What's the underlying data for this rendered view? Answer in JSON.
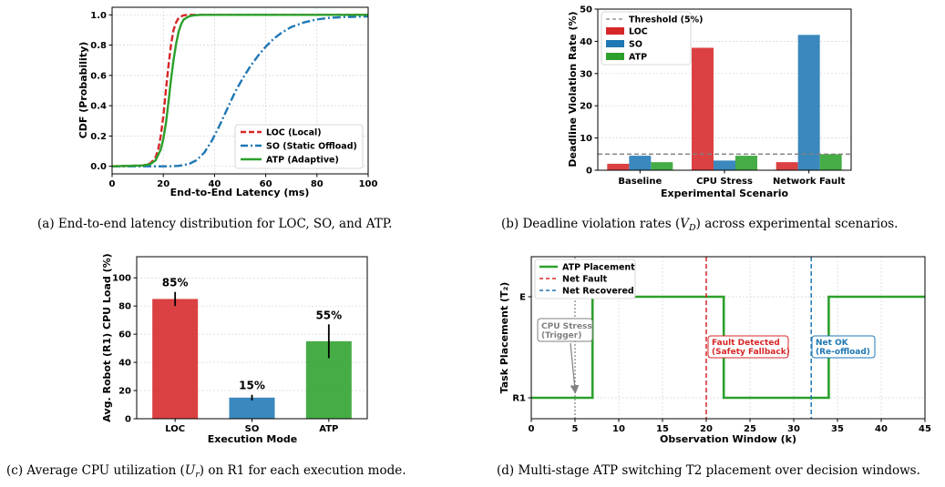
{
  "colors": {
    "loc": "#d62728",
    "so": "#1f77b4",
    "atp": "#2ca02c",
    "threshold": "#808080",
    "gray": "#808080"
  },
  "captions": {
    "a_pre": "(a) End-to-end latency distribution for LOC, SO, and ATP.",
    "b_pre": "(b) Deadline violation rates (",
    "b_sym": "V",
    "b_sub": "D",
    "b_post": ") across experimental scenarios.",
    "c_pre": "(c) Average CPU utilization (",
    "c_sym": "U",
    "c_sub": "r",
    "c_post": ") on R1 for each execution mode.",
    "d_pre": "(d) Multi-stage ATP switching T2 placement over decision windows."
  },
  "chart_data": [
    {
      "id": "a",
      "type": "line",
      "xlabel": "End-to-End Latency (ms)",
      "ylabel": "CDF (Probability)",
      "xlim": [
        0,
        100
      ],
      "ylim": [
        -0.05,
        1.05
      ],
      "xticks": [
        "0",
        "20",
        "40",
        "60",
        "80",
        "100"
      ],
      "yticks": [
        "0.0",
        "0.2",
        "0.4",
        "0.6",
        "0.8",
        "1.0"
      ],
      "grid": true,
      "legend_position": "bottom-right",
      "series": [
        {
          "name": "LOC (Local)",
          "style": "dashed",
          "color": "#d62728",
          "x": [
            0,
            12,
            15,
            17,
            18,
            19,
            20,
            21,
            22,
            23,
            24,
            25,
            26,
            27,
            28,
            30,
            100
          ],
          "y": [
            0,
            0.005,
            0.02,
            0.06,
            0.11,
            0.2,
            0.33,
            0.5,
            0.66,
            0.8,
            0.9,
            0.95,
            0.98,
            0.99,
            0.997,
            1.0,
            1.0
          ]
        },
        {
          "name": "SO (Static Offload)",
          "style": "dashdot",
          "color": "#1f77b4",
          "x": [
            0,
            22,
            26,
            30,
            33,
            36,
            39,
            42,
            45,
            48,
            51,
            54,
            57,
            60,
            63,
            66,
            70,
            75,
            80,
            85,
            90,
            100
          ],
          "y": [
            0,
            0,
            0.003,
            0.015,
            0.04,
            0.09,
            0.17,
            0.27,
            0.38,
            0.49,
            0.58,
            0.66,
            0.73,
            0.79,
            0.84,
            0.88,
            0.92,
            0.95,
            0.97,
            0.98,
            0.985,
            0.99
          ]
        },
        {
          "name": "ATP (Adaptive)",
          "style": "solid",
          "color": "#2ca02c",
          "x": [
            0,
            12,
            15,
            17,
            19,
            20,
            21,
            22,
            23,
            24,
            25,
            26,
            27,
            28,
            30,
            32,
            35,
            100
          ],
          "y": [
            0,
            0.005,
            0.015,
            0.04,
            0.11,
            0.18,
            0.28,
            0.42,
            0.57,
            0.7,
            0.81,
            0.89,
            0.94,
            0.97,
            0.99,
            0.997,
            1.0,
            1.0
          ]
        }
      ]
    },
    {
      "id": "b",
      "type": "bar",
      "xlabel": "Experimental Scenario",
      "ylabel": "Deadline Violation Rate (%)",
      "ylim": [
        0,
        50
      ],
      "yticks": [
        "0",
        "10",
        "20",
        "30",
        "40",
        "50"
      ],
      "categories": [
        "Baseline",
        "CPU Stress",
        "Network Fault"
      ],
      "threshold": {
        "name": "Threshold (5%)",
        "value": 5
      },
      "legend_position": "top-left",
      "grid": true,
      "series": [
        {
          "name": "LOC",
          "color": "#d62728",
          "values": [
            2,
            38,
            2.5
          ]
        },
        {
          "name": "SO",
          "color": "#1f77b4",
          "values": [
            4.5,
            3,
            42
          ]
        },
        {
          "name": "ATP",
          "color": "#2ca02c",
          "values": [
            2.5,
            4.5,
            5
          ]
        }
      ]
    },
    {
      "id": "c",
      "type": "bar",
      "xlabel": "Execution Mode",
      "ylabel": "Avg. Robot (R1) CPU Load (%)",
      "ylim": [
        0,
        115
      ],
      "yticks": [
        "0",
        "20",
        "40",
        "60",
        "80",
        "100"
      ],
      "categories": [
        "LOC",
        "SO",
        "ATP"
      ],
      "values": [
        85,
        15,
        55
      ],
      "errors": [
        5,
        2,
        12
      ],
      "data_labels": [
        "85%",
        "15%",
        "55%"
      ],
      "colors": [
        "#d62728",
        "#1f77b4",
        "#2ca02c"
      ],
      "grid": true
    },
    {
      "id": "d",
      "type": "line",
      "xlabel": "Observation Window (k)",
      "ylabel": "Task Placement (T₂)",
      "xlim": [
        0,
        45
      ],
      "xticks": [
        "0",
        "5",
        "10",
        "15",
        "20",
        "25",
        "30",
        "35",
        "40",
        "45"
      ],
      "yticks": [
        "R1",
        "E"
      ],
      "grid": true,
      "legend_position": "top-left",
      "series": [
        {
          "name": "ATP Placement",
          "color": "#2ca02c",
          "x": [
            0,
            7,
            7,
            22,
            22,
            34,
            34,
            45
          ],
          "y": [
            "R1",
            "R1",
            "E",
            "E",
            "R1",
            "R1",
            "E",
            "E"
          ]
        }
      ],
      "vlines": [
        {
          "name": "Net Fault",
          "x": 20,
          "color": "#d62728"
        },
        {
          "name": "Net Recovered",
          "x": 32,
          "color": "#1f77b4"
        },
        {
          "x": 5,
          "color": "#808080"
        }
      ],
      "annotations": [
        {
          "line1": "CPU Stress",
          "line2": "(Trigger)",
          "color": "#808080"
        },
        {
          "line1": "Fault Detected",
          "line2": "(Safety Fallback)",
          "color": "#d62728"
        },
        {
          "line1": "Net OK",
          "line2": "(Re-offload)",
          "color": "#1f77b4"
        }
      ]
    }
  ]
}
